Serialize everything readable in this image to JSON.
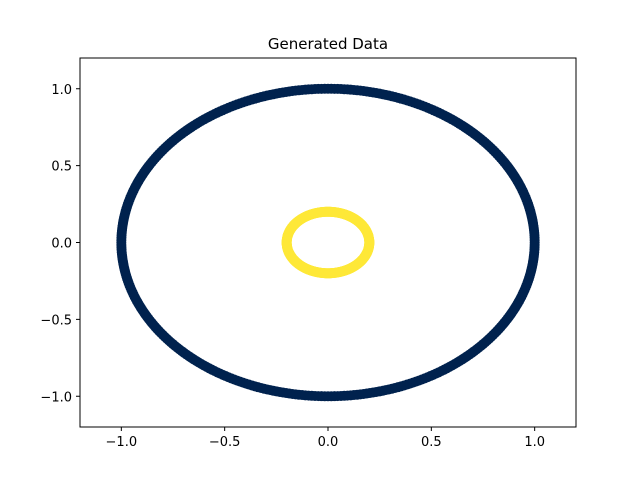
{
  "chart_data": {
    "type": "scatter",
    "title": "Generated Data",
    "xlabel": "",
    "ylabel": "",
    "xlim": [
      -1.2,
      1.2
    ],
    "ylim": [
      -1.2,
      1.2
    ],
    "grid": false,
    "x_ticks": [
      -1.0,
      -0.5,
      0.0,
      0.5,
      1.0
    ],
    "y_ticks": [
      -1.0,
      -0.5,
      0.0,
      0.5,
      1.0
    ],
    "x_tick_labels": [
      "−1.0",
      "−0.5",
      "0.0",
      "0.5",
      "1.0"
    ],
    "y_tick_labels": [
      "−1.0",
      "−0.5",
      "0.0",
      "0.5",
      "1.0"
    ],
    "series": [
      {
        "shape": "circle",
        "center": [
          0,
          0
        ],
        "radius": 1.0,
        "n_points": 400,
        "color": "#00224e"
      },
      {
        "shape": "circle",
        "center": [
          0,
          0
        ],
        "radius": 0.2,
        "n_points": 400,
        "color": "#fee838"
      }
    ]
  }
}
